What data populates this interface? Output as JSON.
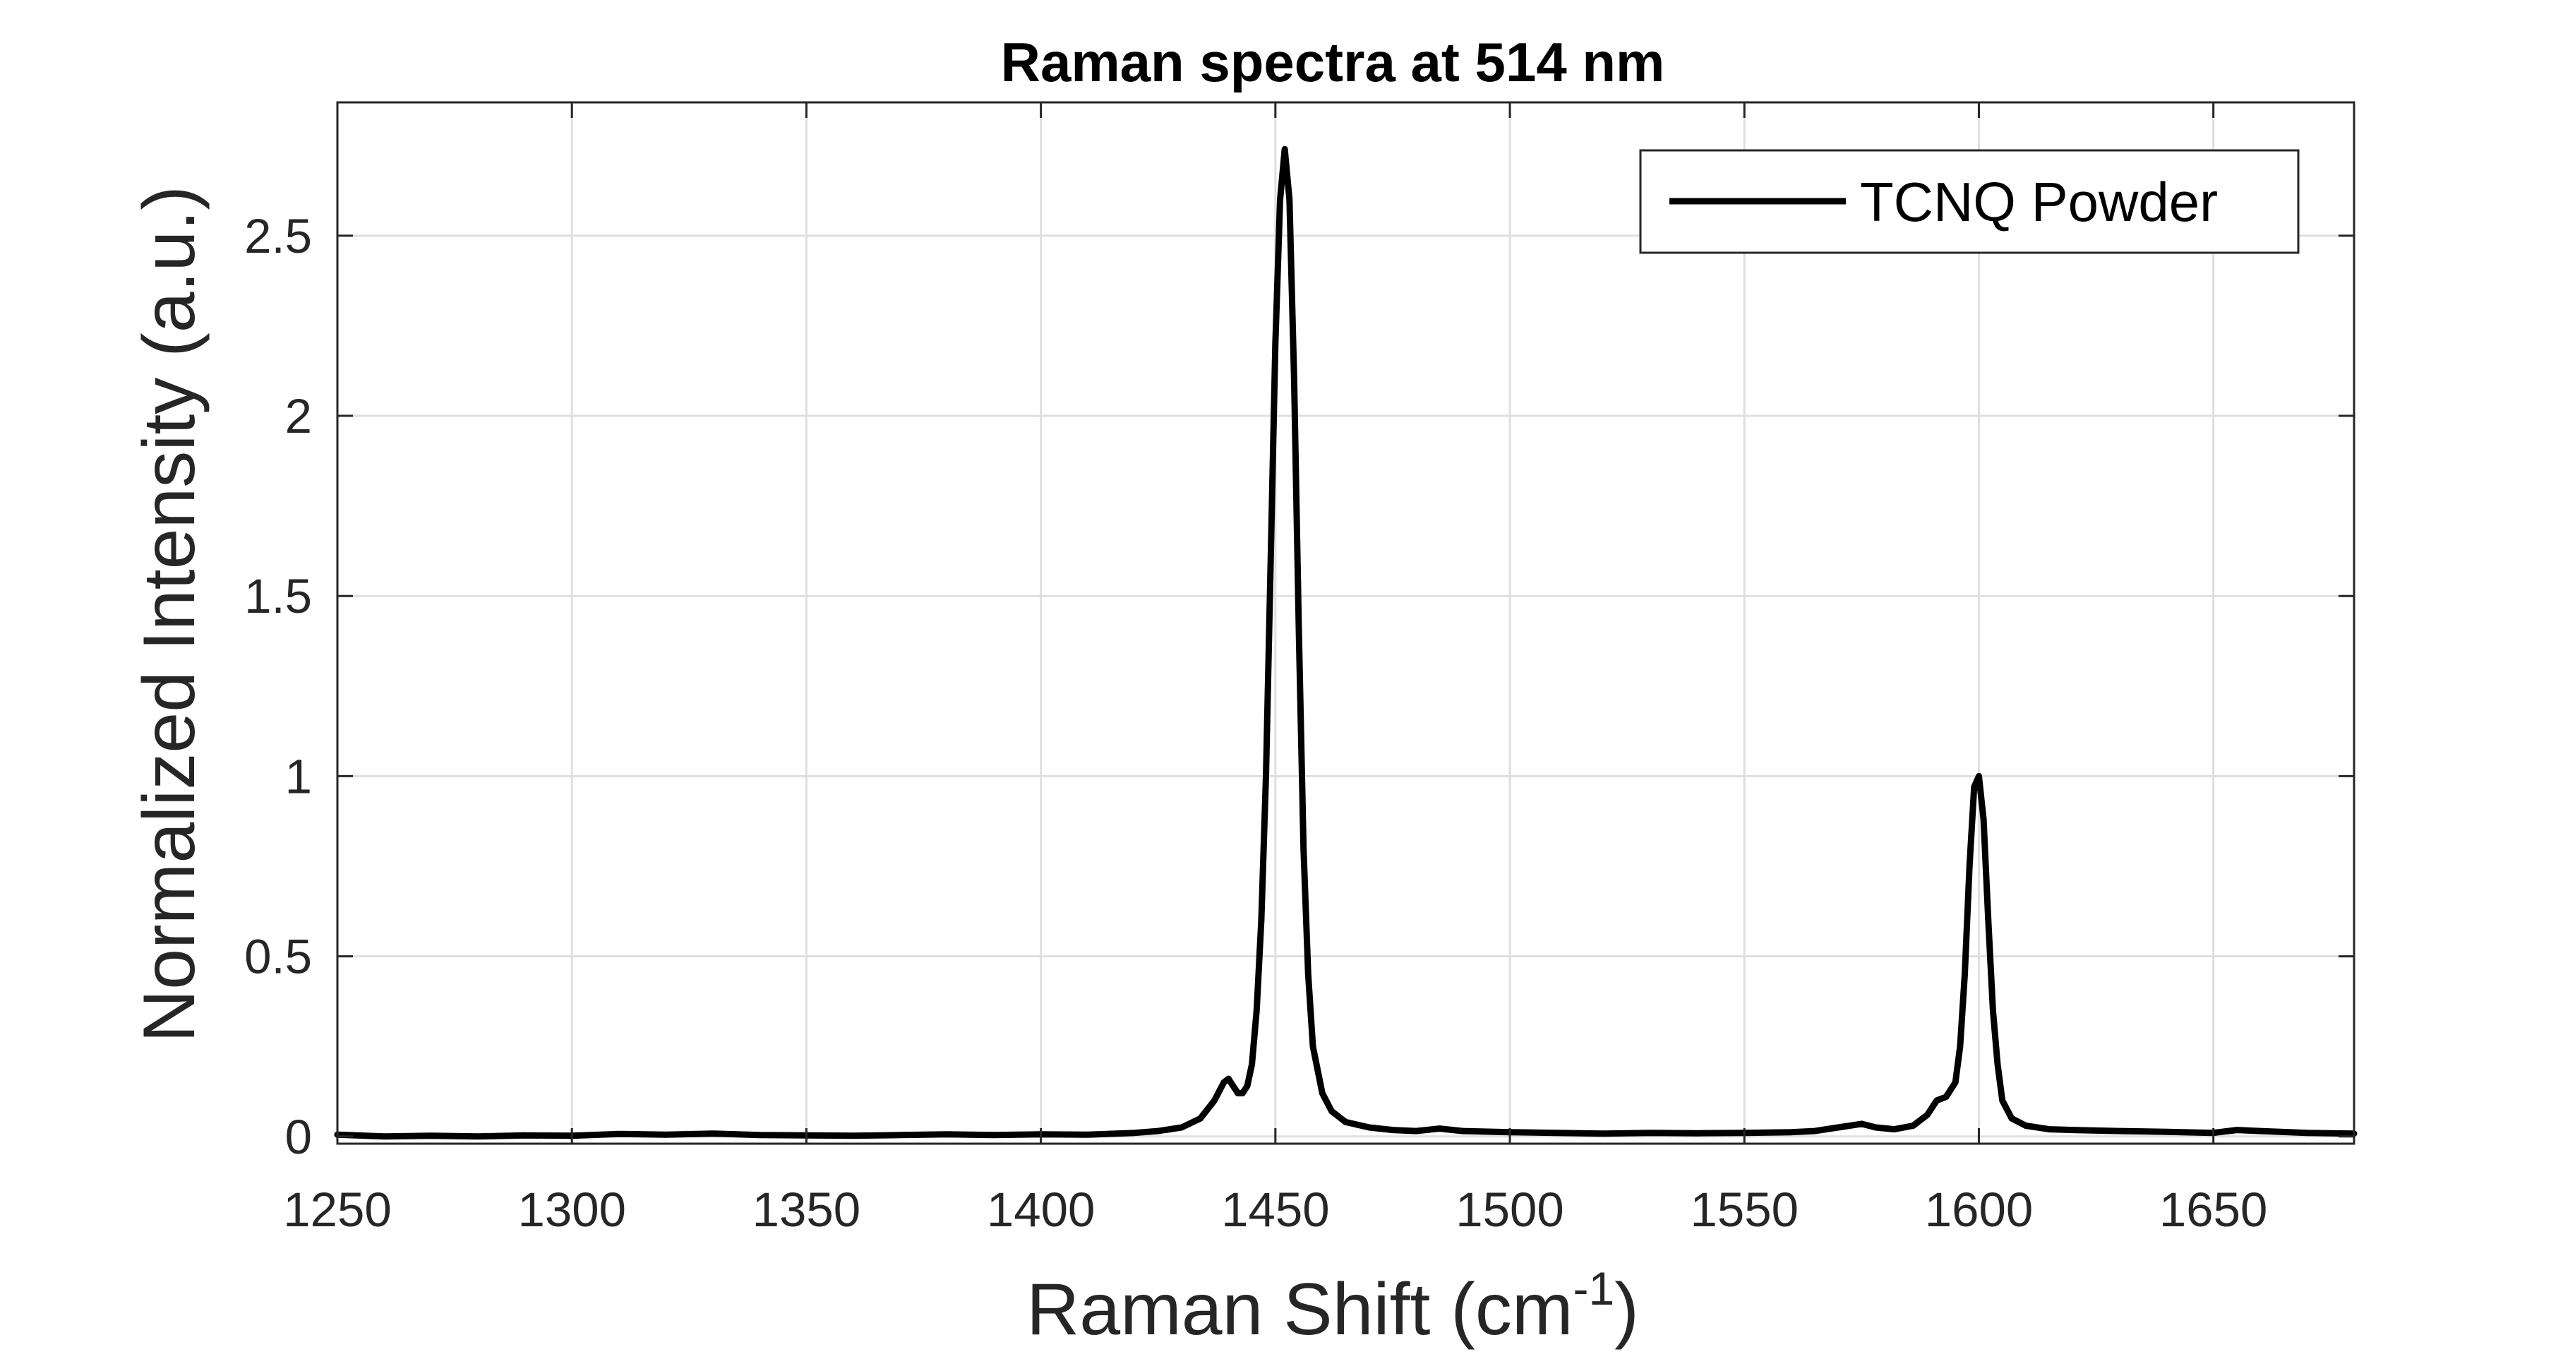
{
  "chart_data": {
    "type": "line",
    "title": "Raman spectra at 514 nm",
    "xlabel": {
      "text": "Raman Shift (cm",
      "superscript": "-1",
      "suffix": ")"
    },
    "ylabel": "Normalized Intensity (a.u.)",
    "xlim": [
      1250,
      1680
    ],
    "ylim": [
      -0.02,
      2.87
    ],
    "xticks": [
      1250,
      1300,
      1350,
      1400,
      1450,
      1500,
      1550,
      1600,
      1650
    ],
    "xtick_labels": [
      "1250",
      "1300",
      "1350",
      "1400",
      "1450",
      "1500",
      "1550",
      "1600",
      "1650"
    ],
    "yticks": [
      0,
      0.5,
      1,
      1.5,
      2,
      2.5
    ],
    "ytick_labels": [
      "0",
      "0.5",
      "1",
      "1.5",
      "2",
      "2.5"
    ],
    "grid": true,
    "legend_position": "top-right",
    "series": [
      {
        "name": "TCNQ Powder",
        "color": "#000000",
        "points": [
          [
            1250,
            0.005
          ],
          [
            1260,
            0.0
          ],
          [
            1270,
            0.002
          ],
          [
            1280,
            0.0
          ],
          [
            1290,
            0.003
          ],
          [
            1300,
            0.002
          ],
          [
            1310,
            0.007
          ],
          [
            1320,
            0.005
          ],
          [
            1330,
            0.008
          ],
          [
            1340,
            0.004
          ],
          [
            1350,
            0.003
          ],
          [
            1360,
            0.002
          ],
          [
            1370,
            0.004
          ],
          [
            1380,
            0.006
          ],
          [
            1390,
            0.004
          ],
          [
            1400,
            0.006
          ],
          [
            1410,
            0.005
          ],
          [
            1420,
            0.01
          ],
          [
            1425,
            0.015
          ],
          [
            1430,
            0.025
          ],
          [
            1434,
            0.05
          ],
          [
            1437,
            0.1
          ],
          [
            1439,
            0.15
          ],
          [
            1440,
            0.16
          ],
          [
            1441,
            0.14
          ],
          [
            1442,
            0.12
          ],
          [
            1443,
            0.12
          ],
          [
            1444,
            0.14
          ],
          [
            1445,
            0.2
          ],
          [
            1446,
            0.35
          ],
          [
            1447,
            0.6
          ],
          [
            1448,
            1.0
          ],
          [
            1449,
            1.6
          ],
          [
            1450,
            2.2
          ],
          [
            1451,
            2.6
          ],
          [
            1452,
            2.74
          ],
          [
            1453,
            2.6
          ],
          [
            1454,
            2.1
          ],
          [
            1455,
            1.4
          ],
          [
            1456,
            0.8
          ],
          [
            1457,
            0.45
          ],
          [
            1458,
            0.25
          ],
          [
            1460,
            0.12
          ],
          [
            1462,
            0.07
          ],
          [
            1465,
            0.04
          ],
          [
            1470,
            0.025
          ],
          [
            1475,
            0.018
          ],
          [
            1480,
            0.015
          ],
          [
            1485,
            0.022
          ],
          [
            1490,
            0.015
          ],
          [
            1500,
            0.012
          ],
          [
            1510,
            0.01
          ],
          [
            1520,
            0.008
          ],
          [
            1530,
            0.01
          ],
          [
            1540,
            0.009
          ],
          [
            1550,
            0.01
          ],
          [
            1560,
            0.012
          ],
          [
            1565,
            0.015
          ],
          [
            1570,
            0.025
          ],
          [
            1575,
            0.035
          ],
          [
            1578,
            0.025
          ],
          [
            1582,
            0.02
          ],
          [
            1586,
            0.03
          ],
          [
            1589,
            0.06
          ],
          [
            1591,
            0.1
          ],
          [
            1593,
            0.11
          ],
          [
            1595,
            0.15
          ],
          [
            1596,
            0.25
          ],
          [
            1597,
            0.45
          ],
          [
            1598,
            0.75
          ],
          [
            1599,
            0.97
          ],
          [
            1600,
            1.0
          ],
          [
            1601,
            0.88
          ],
          [
            1602,
            0.6
          ],
          [
            1603,
            0.35
          ],
          [
            1604,
            0.2
          ],
          [
            1605,
            0.1
          ],
          [
            1607,
            0.05
          ],
          [
            1610,
            0.03
          ],
          [
            1615,
            0.02
          ],
          [
            1620,
            0.018
          ],
          [
            1630,
            0.015
          ],
          [
            1640,
            0.013
          ],
          [
            1650,
            0.01
          ],
          [
            1655,
            0.018
          ],
          [
            1660,
            0.015
          ],
          [
            1670,
            0.01
          ],
          [
            1680,
            0.008
          ]
        ]
      }
    ]
  },
  "colors": {
    "axes": "#262626",
    "grid": "#dfdfdf",
    "line": "#000000",
    "background": "#ffffff"
  }
}
